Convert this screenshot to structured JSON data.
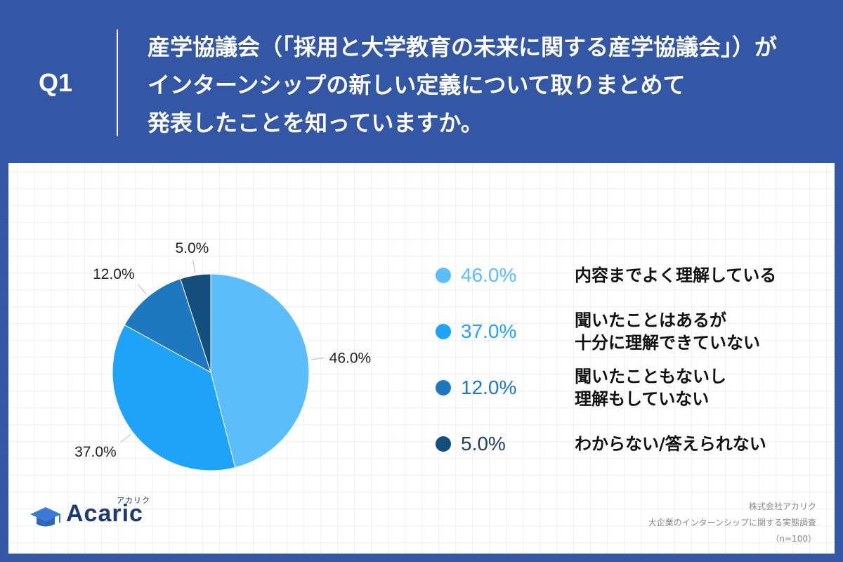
{
  "header": {
    "q_label": "Q1",
    "question_lines": [
      "産学協議会（「採用と大学教育の未来に関する産学協議会」）が",
      "インターンシップの新しい定義について取りまとめて",
      "発表したことを知っていますか。"
    ]
  },
  "chart_data": {
    "type": "pie",
    "categories": [
      "内容までよく理解している",
      "聞いたことはあるが\n十分に理解できていない",
      "聞いたこともないし\n理解もしていない",
      "わからない/答えられない"
    ],
    "values": [
      46.0,
      37.0,
      12.0,
      5.0
    ],
    "value_labels": [
      "46.0%",
      "37.0%",
      "12.0%",
      "5.0%"
    ],
    "colors": [
      "#5cbdfc",
      "#1fa3f9",
      "#1e78bf",
      "#134e7c"
    ],
    "start": "12 o'clock",
    "direction": "clockwise"
  },
  "legend": {
    "items": [
      {
        "pct": "46.0%",
        "text": "内容までよく理解している",
        "color": "#5cbdfc"
      },
      {
        "pct": "37.0%",
        "text": "聞いたことはあるが\n十分に理解できていない",
        "color": "#1fa3f9"
      },
      {
        "pct": "12.0%",
        "text": "聞いたこともないし\n理解もしていない",
        "color": "#1e78bf"
      },
      {
        "pct": "5.0%",
        "text": "わからない/答えられない",
        "color": "#134e7c"
      }
    ]
  },
  "logo": {
    "name": "Acaric",
    "ruby": "アカリク"
  },
  "source": {
    "company": "株式会社アカリク",
    "survey": "大企業のインターンシップに関する実態調査",
    "sample": "（n=100）"
  }
}
